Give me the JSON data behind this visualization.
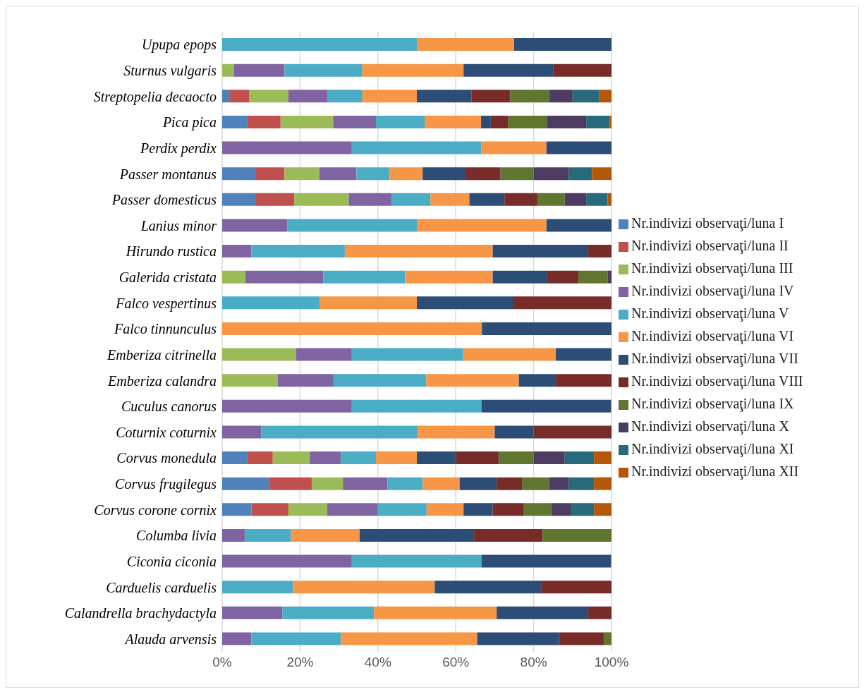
{
  "chart_data": {
    "type": "bar",
    "orientation": "horizontal",
    "stacked": true,
    "grid": "x",
    "legend": "right",
    "categories": [
      "Upupa epops",
      "Sturnus vulgaris",
      "Streptopelia decaocto",
      "Pica pica",
      "Perdix perdix",
      "Passer montanus",
      "Passer domesticus",
      "Lanius minor",
      "Hirundo rustica",
      "Galerida cristata",
      "Falco vespertinus",
      "Falco  tinnunculus",
      "Emberiza citrinella",
      "Emberiza calandra",
      "Cuculus canorus",
      "Coturnix coturnix",
      "Corvus monedula",
      "Corvus frugilegus",
      "Corvus corone cornix",
      "Columba livia",
      "Ciconia ciconia",
      "Carduelis carduelis",
      "Calandrella brachydactyla",
      "Alauda arvensis"
    ],
    "xlim": [
      0,
      100
    ],
    "xticks": [
      {
        "value": 0,
        "label": "0%"
      },
      {
        "value": 20,
        "label": "20%"
      },
      {
        "value": 40,
        "label": "40%"
      },
      {
        "value": 60,
        "label": "60%"
      },
      {
        "value": 80,
        "label": "80%"
      },
      {
        "value": 100,
        "label": "100%"
      }
    ],
    "series": [
      {
        "name": "Nr.indivizi observaţi/luna I",
        "color": "#4f81bd",
        "values": [
          0,
          0,
          2,
          6.5,
          0,
          8.5,
          8.5,
          0,
          0,
          0,
          0,
          0,
          0,
          0,
          0,
          0,
          6.5,
          12,
          7.5,
          0,
          0,
          0,
          0,
          0
        ]
      },
      {
        "name": "Nr.indivizi observaţi/luna II",
        "color": "#c0504d",
        "values": [
          0,
          0,
          5,
          8.5,
          0,
          7.5,
          10,
          0,
          0,
          0,
          0,
          0,
          0,
          0,
          0,
          0,
          6.5,
          11,
          9.5,
          0,
          0,
          0,
          0,
          0
        ]
      },
      {
        "name": "Nr.indivizi observaţi/luna III",
        "color": "#9bbb59",
        "values": [
          0,
          3,
          10,
          13.5,
          0,
          9,
          14,
          0,
          0,
          6,
          0,
          0,
          19,
          14.3,
          0,
          0,
          9.5,
          8,
          10,
          0,
          0,
          0,
          0,
          0
        ]
      },
      {
        "name": "Nr.indivizi observaţi/luna IV",
        "color": "#8064a2",
        "values": [
          0,
          13,
          10,
          11,
          33.3,
          9.5,
          11,
          16.7,
          7.5,
          20,
          0,
          0,
          14.3,
          14.3,
          33.3,
          10,
          8,
          11.5,
          13,
          5.9,
          33.3,
          0,
          15.5,
          7.5
        ]
      },
      {
        "name": "Nr.indivizi observaţi/luna V",
        "color": "#4bacc6",
        "values": [
          50,
          20,
          9,
          12.5,
          33.3,
          8.5,
          10,
          33.3,
          24,
          21,
          25,
          0,
          28.6,
          23.8,
          33.3,
          40,
          9,
          9,
          12.5,
          11.8,
          33.3,
          18.2,
          23.5,
          23
        ]
      },
      {
        "name": "Nr.indivizi observaţi/luna VI",
        "color": "#f79646",
        "values": [
          25,
          26,
          14,
          14.5,
          16.7,
          8.5,
          10,
          33.3,
          38,
          22.5,
          25,
          66.7,
          23.8,
          23.8,
          0,
          20,
          10.5,
          9.5,
          9.5,
          17.6,
          0,
          36.4,
          31.5,
          35
        ]
      },
      {
        "name": "Nr.indivizi observaţi/luna VII",
        "color": "#2c4d75",
        "values": [
          25,
          23,
          14,
          2.5,
          16.7,
          11,
          9,
          16.7,
          24.5,
          14,
          25,
          33.3,
          14.3,
          9.5,
          33.3,
          10,
          10,
          9.5,
          7.5,
          29.4,
          33.3,
          27.3,
          23.5,
          21
        ]
      },
      {
        "name": "Nr.indivizi observaţi/luna VIII",
        "color": "#772c2a",
        "values": [
          0,
          15,
          10,
          4.5,
          0,
          9,
          8.5,
          0,
          6,
          8,
          25,
          0,
          0,
          14.3,
          0,
          20,
          11,
          6.5,
          8,
          17.6,
          0,
          18.1,
          6,
          11.5
        ]
      },
      {
        "name": "Nr.indivizi observaţi/luna IX",
        "color": "#5f7530",
        "values": [
          0,
          0,
          10,
          10,
          0,
          8.5,
          7,
          0,
          0,
          7.5,
          0,
          0,
          0,
          0,
          0,
          0,
          9,
          7,
          7,
          17.7,
          0,
          0,
          0,
          2
        ]
      },
      {
        "name": "Nr.indivizi observaţi/luna X",
        "color": "#4d3b62",
        "values": [
          0,
          0,
          6,
          10,
          0,
          9,
          5.5,
          0,
          0,
          1,
          0,
          0,
          0,
          0,
          0,
          0,
          8,
          5,
          5,
          0,
          0,
          0,
          0,
          0
        ]
      },
      {
        "name": "Nr.indivizi observaţi/luna XI",
        "color": "#276a7c",
        "values": [
          0,
          0,
          7,
          6,
          0,
          6,
          5.5,
          0,
          0,
          0,
          0,
          0,
          0,
          0,
          0,
          0,
          7.5,
          6.5,
          6,
          0,
          0,
          0,
          0,
          0
        ]
      },
      {
        "name": "Nr.indivizi observaţi/luna XII",
        "color": "#b65708",
        "values": [
          0,
          0,
          3,
          0.5,
          0,
          5,
          1,
          0,
          0,
          0,
          0,
          0,
          0,
          0,
          0,
          0,
          4.5,
          4.5,
          4.5,
          0,
          0,
          0,
          0,
          0
        ]
      }
    ]
  }
}
